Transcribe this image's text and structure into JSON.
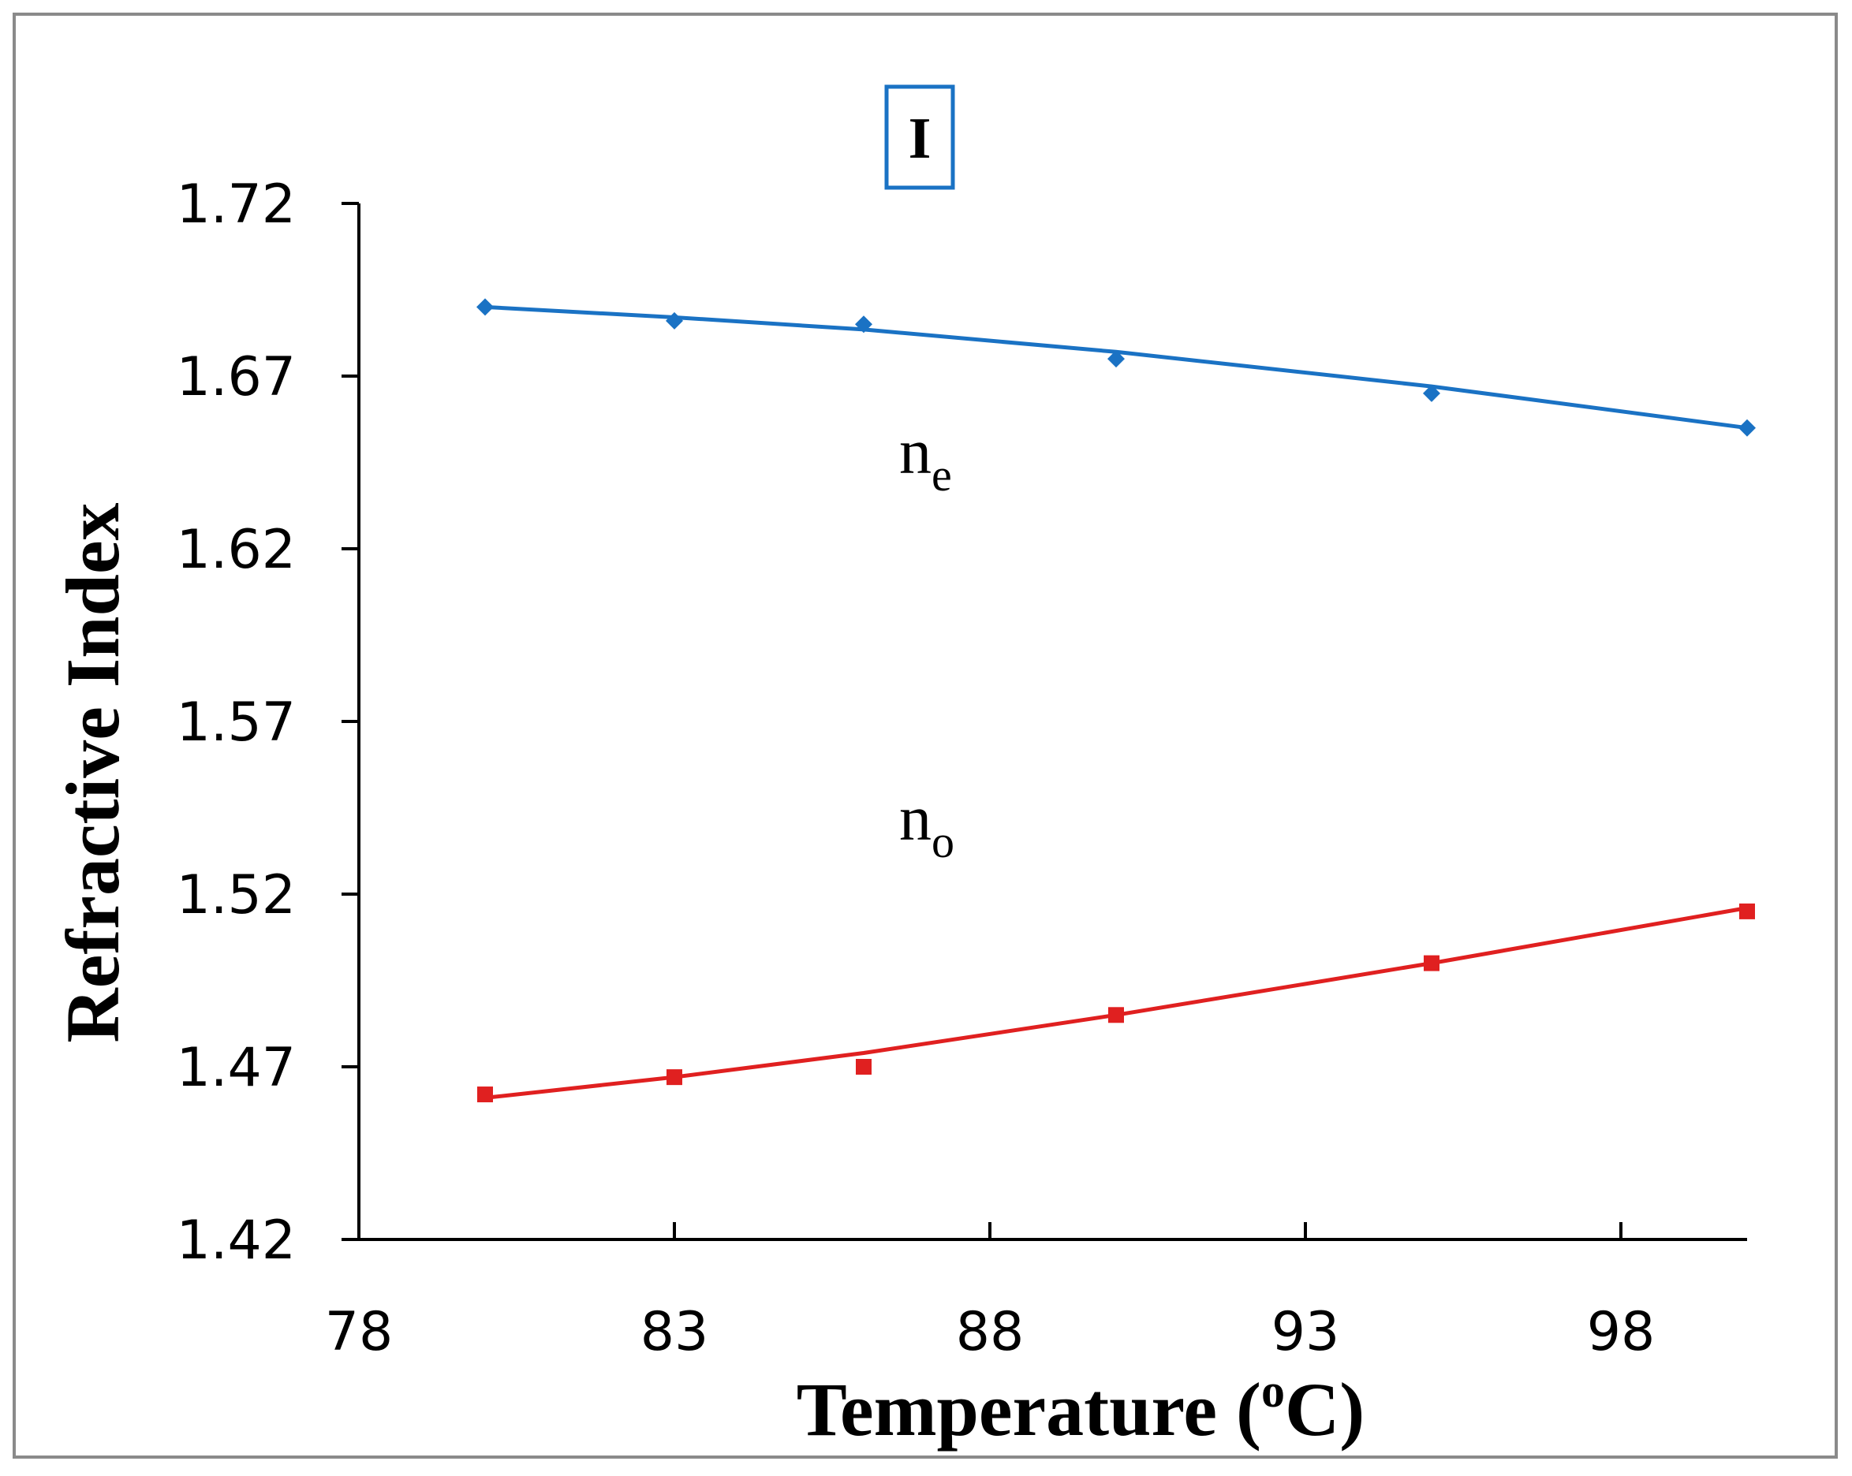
{
  "chart_data": {
    "type": "line",
    "panel_label": "I",
    "xlabel_main": "Temperature (",
    "xlabel_sup": "o",
    "xlabel_end": "C)",
    "ylabel": "Refractive Index",
    "xlim": [
      78,
      100
    ],
    "ylim": [
      1.42,
      1.72
    ],
    "xticks": [
      78,
      83,
      88,
      93,
      98
    ],
    "yticks": [
      1.42,
      1.47,
      1.52,
      1.57,
      1.62,
      1.67,
      1.72
    ],
    "ytick_labels": [
      "1.42",
      "1.47",
      "1.52",
      "1.57",
      "1.62",
      "1.67",
      "1.72"
    ],
    "xtick_labels": [
      "78",
      "83",
      "88",
      "93",
      "98"
    ],
    "series": [
      {
        "name": "ne",
        "label_main": "n",
        "label_sub": "e",
        "color": "#1a72c4",
        "marker": "diamond",
        "x": [
          80,
          83,
          86,
          90,
          95,
          100
        ],
        "values": [
          1.69,
          1.686,
          1.685,
          1.675,
          1.665,
          1.655
        ],
        "fit": [
          1.69,
          1.687,
          1.6835,
          1.677,
          1.667,
          1.655
        ]
      },
      {
        "name": "no",
        "label_main": "n",
        "label_sub": "o",
        "color": "#e02020",
        "marker": "square",
        "x": [
          80,
          83,
          86,
          90,
          95,
          100
        ],
        "values": [
          1.462,
          1.467,
          1.47,
          1.485,
          1.5,
          1.515
        ],
        "fit": [
          1.461,
          1.467,
          1.474,
          1.485,
          1.5,
          1.516
        ]
      }
    ]
  }
}
